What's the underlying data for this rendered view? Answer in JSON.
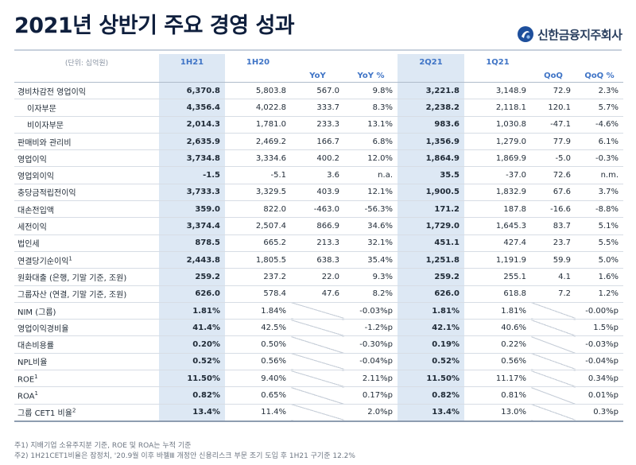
{
  "title": "2021년 상반기 주요 경영 성과",
  "logo_text": "신한금융지주회사",
  "table": {
    "unit": "(단위: 십억원)",
    "col_groups": [
      "1H21",
      "1H20",
      "2Q21",
      "1Q21"
    ],
    "sub_headers": [
      "YoY",
      "YoY %",
      "QoQ",
      "QoQ %"
    ],
    "rows": [
      {
        "label": "경비차감전 영업이익",
        "indent": false,
        "sup": "",
        "cells": [
          "6,370.8",
          "5,803.8",
          "567.0",
          "9.8%",
          "3,221.8",
          "3,148.9",
          "72.9",
          "2.3%"
        ]
      },
      {
        "label": "이자부문",
        "indent": true,
        "sup": "",
        "cells": [
          "4,356.4",
          "4,022.8",
          "333.7",
          "8.3%",
          "2,238.2",
          "2,118.1",
          "120.1",
          "5.7%"
        ]
      },
      {
        "label": "비이자부문",
        "indent": true,
        "sup": "",
        "cells": [
          "2,014.3",
          "1,781.0",
          "233.3",
          "13.1%",
          "983.6",
          "1,030.8",
          "-47.1",
          "-4.6%"
        ]
      },
      {
        "label": "판매비와 관리비",
        "indent": false,
        "sup": "",
        "cells": [
          "2,635.9",
          "2,469.2",
          "166.7",
          "6.8%",
          "1,356.9",
          "1,279.0",
          "77.9",
          "6.1%"
        ]
      },
      {
        "label": "영업이익",
        "indent": false,
        "sup": "",
        "cells": [
          "3,734.8",
          "3,334.6",
          "400.2",
          "12.0%",
          "1,864.9",
          "1,869.9",
          "-5.0",
          "-0.3%"
        ]
      },
      {
        "label": "영업외이익",
        "indent": false,
        "sup": "",
        "cells": [
          "-1.5",
          "-5.1",
          "3.6",
          "n.a.",
          "35.5",
          "-37.0",
          "72.6",
          "n.m."
        ]
      },
      {
        "label": "충당금적립전이익",
        "indent": false,
        "sup": "",
        "cells": [
          "3,733.3",
          "3,329.5",
          "403.9",
          "12.1%",
          "1,900.5",
          "1,832.9",
          "67.6",
          "3.7%"
        ]
      },
      {
        "label": "대손전입액",
        "indent": false,
        "sup": "",
        "cells": [
          "359.0",
          "822.0",
          "-463.0",
          "-56.3%",
          "171.2",
          "187.8",
          "-16.6",
          "-8.8%"
        ]
      },
      {
        "label": "세전이익",
        "indent": false,
        "sup": "",
        "cells": [
          "3,374.4",
          "2,507.4",
          "866.9",
          "34.6%",
          "1,729.0",
          "1,645.3",
          "83.7",
          "5.1%"
        ]
      },
      {
        "label": "법인세",
        "indent": false,
        "sup": "",
        "cells": [
          "878.5",
          "665.2",
          "213.3",
          "32.1%",
          "451.1",
          "427.4",
          "23.7",
          "5.5%"
        ]
      },
      {
        "label": "연결당기순이익",
        "indent": false,
        "sup": "1",
        "cells": [
          "2,443.8",
          "1,805.5",
          "638.3",
          "35.4%",
          "1,251.8",
          "1,191.9",
          "59.9",
          "5.0%"
        ]
      },
      {
        "label": "원화대출 (은행, 기말 기준, 조원)",
        "indent": false,
        "sup": "",
        "cells": [
          "259.2",
          "237.2",
          "22.0",
          "9.3%",
          "259.2",
          "255.1",
          "4.1",
          "1.6%"
        ]
      },
      {
        "label": "그룹자산 (연결, 기말 기준, 조원)",
        "indent": false,
        "sup": "",
        "cells": [
          "626.0",
          "578.4",
          "47.6",
          "8.2%",
          "626.0",
          "618.8",
          "7.2",
          "1.2%"
        ]
      },
      {
        "label": "NIM (그룹)",
        "indent": false,
        "sup": "",
        "cells": [
          "1.81%",
          "1.84%",
          "",
          "-0.03%p",
          "1.81%",
          "1.81%",
          "",
          "-0.00%p"
        ]
      },
      {
        "label": "영업이익경비율",
        "indent": false,
        "sup": "",
        "cells": [
          "41.4%",
          "42.5%",
          "",
          "-1.2%p",
          "42.1%",
          "40.6%",
          "",
          "1.5%p"
        ]
      },
      {
        "label": "대손비용률",
        "indent": false,
        "sup": "",
        "cells": [
          "0.20%",
          "0.50%",
          "",
          "-0.30%p",
          "0.19%",
          "0.22%",
          "",
          "-0.03%p"
        ]
      },
      {
        "label": "NPL비율",
        "indent": false,
        "sup": "",
        "cells": [
          "0.52%",
          "0.56%",
          "",
          "-0.04%p",
          "0.52%",
          "0.56%",
          "",
          "-0.04%p"
        ]
      },
      {
        "label": "ROE",
        "indent": false,
        "sup": "1",
        "cells": [
          "11.50%",
          "9.40%",
          "",
          "2.11%p",
          "11.50%",
          "11.17%",
          "",
          "0.34%p"
        ]
      },
      {
        "label": "ROA",
        "indent": false,
        "sup": "1",
        "cells": [
          "0.82%",
          "0.65%",
          "",
          "0.17%p",
          "0.82%",
          "0.81%",
          "",
          "0.01%p"
        ]
      },
      {
        "label": "그룹 CET1 비율",
        "indent": false,
        "sup": "2",
        "cells": [
          "13.4%",
          "11.4%",
          "",
          "2.0%p",
          "13.4%",
          "13.0%",
          "",
          "0.3%p"
        ]
      }
    ]
  },
  "footnotes": [
    "주1) 지배기업 소유주지분 기준, ROE 및 ROA는 누적 기준",
    "주2) 1H21CET1비율은 잠정치, '20.9월 이후 바젤Ⅲ 개정안 신용리스크 부문 조기 도입 후 1H21 구기준 12.2%"
  ],
  "colors": {
    "title": "#0f1f3d",
    "accent": "#3f74c6",
    "highlight": "#dde8f4"
  }
}
